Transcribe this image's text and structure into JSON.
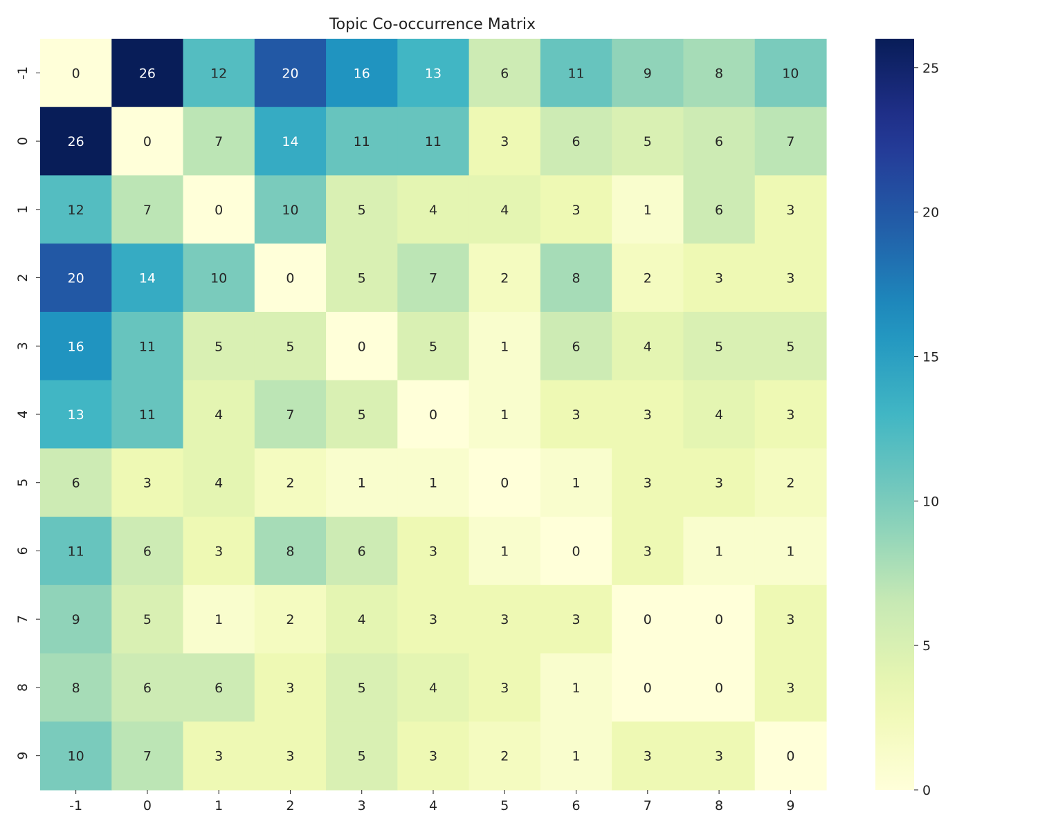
{
  "chart_data": {
    "type": "heatmap",
    "title": "Topic Co-occurrence Matrix",
    "xlabel": "",
    "ylabel": "",
    "x_categories": [
      "-1",
      "0",
      "1",
      "2",
      "3",
      "4",
      "5",
      "6",
      "7",
      "8",
      "9"
    ],
    "y_categories": [
      "-1",
      "0",
      "1",
      "2",
      "3",
      "4",
      "5",
      "6",
      "7",
      "8",
      "9"
    ],
    "values": [
      [
        0,
        26,
        12,
        20,
        16,
        13,
        6,
        11,
        9,
        8,
        10
      ],
      [
        26,
        0,
        7,
        14,
        11,
        11,
        3,
        6,
        5,
        6,
        7
      ],
      [
        12,
        7,
        0,
        10,
        5,
        4,
        4,
        3,
        1,
        6,
        3
      ],
      [
        20,
        14,
        10,
        0,
        5,
        7,
        2,
        8,
        2,
        3,
        3
      ],
      [
        16,
        11,
        5,
        5,
        0,
        5,
        1,
        6,
        4,
        5,
        5
      ],
      [
        13,
        11,
        4,
        7,
        5,
        0,
        1,
        3,
        3,
        4,
        3
      ],
      [
        6,
        3,
        4,
        2,
        1,
        1,
        0,
        1,
        3,
        3,
        2
      ],
      [
        11,
        6,
        3,
        8,
        6,
        3,
        1,
        0,
        3,
        1,
        1
      ],
      [
        9,
        5,
        1,
        2,
        4,
        3,
        3,
        3,
        0,
        0,
        3
      ],
      [
        8,
        6,
        6,
        3,
        5,
        4,
        3,
        1,
        0,
        0,
        3
      ],
      [
        10,
        7,
        3,
        3,
        5,
        3,
        2,
        1,
        3,
        3,
        0
      ]
    ],
    "annotated": true,
    "colormap": "YlGnBu",
    "colorbar": {
      "range": [
        0,
        26
      ],
      "ticks": [
        0,
        5,
        10,
        15,
        20,
        25
      ]
    },
    "grid": false
  }
}
